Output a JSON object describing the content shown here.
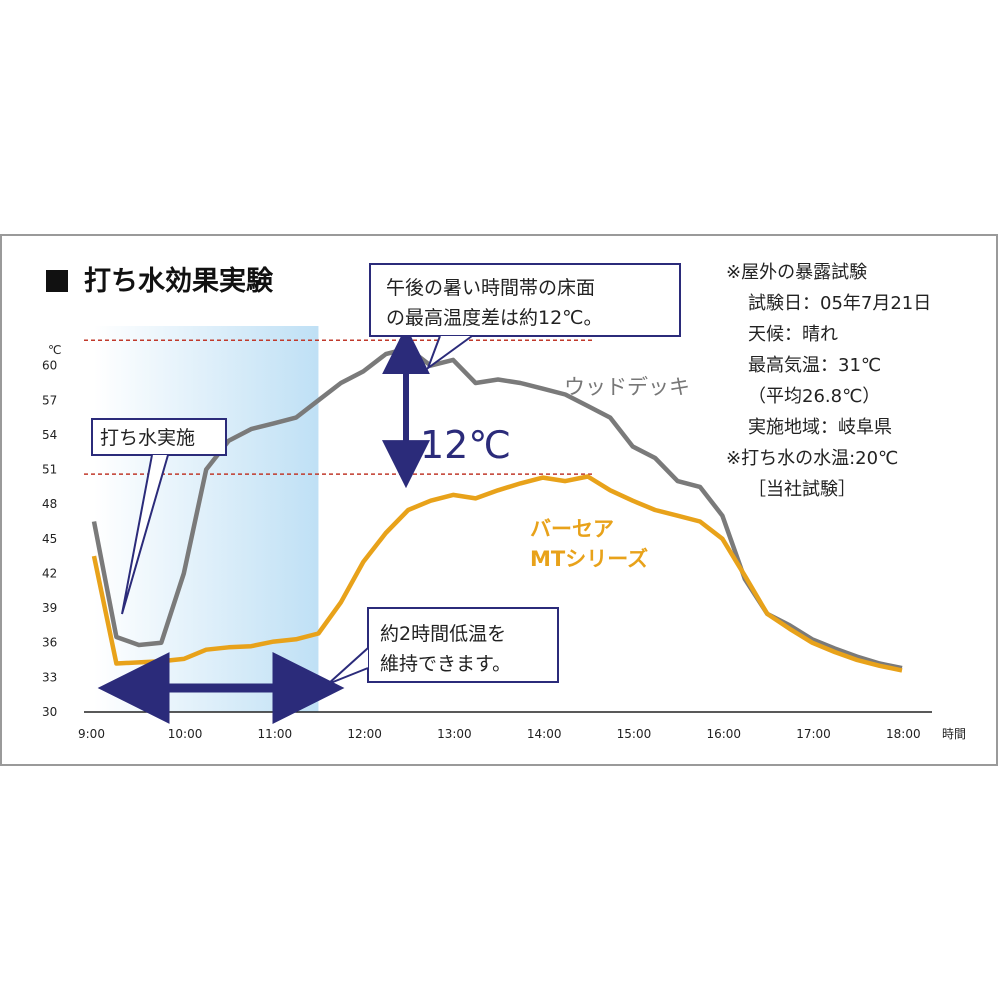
{
  "title": "打ち水効果実験",
  "chart_data": {
    "type": "line",
    "x": [
      "9:00",
      "9:15",
      "9:30",
      "9:45",
      "10:00",
      "10:15",
      "10:30",
      "10:45",
      "11:00",
      "11:15",
      "11:30",
      "11:45",
      "12:00",
      "12:15",
      "12:30",
      "12:45",
      "13:00",
      "13:15",
      "13:30",
      "13:45",
      "14:00",
      "14:15",
      "14:30",
      "14:45",
      "15:00",
      "15:15",
      "15:30",
      "15:45",
      "16:00",
      "16:15",
      "16:30",
      "16:45",
      "17:00",
      "17:15",
      "17:30",
      "17:45",
      "18:00"
    ],
    "series": [
      {
        "name": "ウッドデッキ",
        "color": "#7a7a7a",
        "values": [
          46.5,
          36.5,
          35.8,
          36.0,
          42.0,
          51.0,
          53.5,
          54.5,
          55.0,
          55.5,
          57.0,
          58.5,
          59.5,
          61.0,
          61.5,
          60.0,
          60.5,
          58.5,
          58.8,
          58.5,
          58.0,
          57.5,
          56.5,
          55.5,
          53.0,
          52.0,
          50.0,
          49.5,
          47.0,
          41.5,
          38.5,
          37.5,
          36.3,
          35.5,
          34.8,
          34.2,
          33.8
        ]
      },
      {
        "name": "バーセア MTシリーズ",
        "color": "#e8a21a",
        "values": [
          43.5,
          34.2,
          34.3,
          34.4,
          34.6,
          35.4,
          35.6,
          35.7,
          36.1,
          36.3,
          36.8,
          39.5,
          43.0,
          45.5,
          47.5,
          48.3,
          48.8,
          48.5,
          49.2,
          49.8,
          50.3,
          50.0,
          50.4,
          49.2,
          48.3,
          47.5,
          47.0,
          46.5,
          45.0,
          41.8,
          38.5,
          37.2,
          36.0,
          35.2,
          34.5,
          34.0,
          33.6
        ]
      }
    ],
    "y_unit": "℃",
    "x_unit": "時間",
    "y_ticks": [
      30,
      33,
      36,
      39,
      42,
      45,
      48,
      51,
      54,
      57,
      60
    ],
    "x_ticks": [
      "9:00",
      "10:00",
      "11:00",
      "12:00",
      "13:00",
      "14:00",
      "15:00",
      "16:00",
      "17:00",
      "18:00"
    ],
    "ylim": [
      30,
      63
    ],
    "x_hours": [
      9,
      18
    ],
    "reference_lines": [
      62.2,
      50.6
    ],
    "watering_period_hours": [
      9.0,
      11.5
    ],
    "low_temp_arrow_hours": [
      9.33,
      11.5
    ],
    "grid": false
  },
  "labels": {
    "wood_deck": "ウッドデッキ",
    "mt_line1": "バーセア",
    "mt_line2": "MTシリーズ",
    "watering": "打ち水実施",
    "diff_value": "12℃",
    "callout_top_line1": "午後の暑い時間帯の床面",
    "callout_top_line2": "の最高温度差は約12℃。",
    "callout_bottom_line1": "約2時間低温を",
    "callout_bottom_line2": "維持できます。"
  },
  "notes": [
    "※屋外の暴露試験",
    "試験日：05年7月21日",
    "天候：晴れ",
    "最高気温：31℃",
    "（平均26.8℃）",
    "実施地域：岐阜県",
    "※打ち水の水温:20℃",
    "［当社試験］"
  ],
  "colors": {
    "wood": "#7a7a7a",
    "mt": "#e8a21a",
    "navy": "#2b2b7a",
    "ref": "#c0392b"
  }
}
